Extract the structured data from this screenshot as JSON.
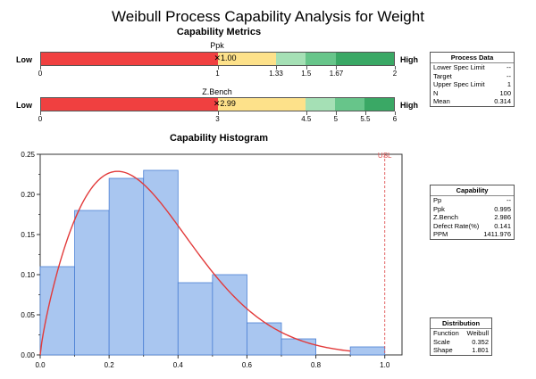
{
  "title": "Weibull Process Capability Analysis for Weight",
  "metrics_title": "Capability Metrics",
  "histogram_title": "Capability Histogram",
  "colors": {
    "red": "#f04040",
    "yellow": "#fde18a",
    "lightgreen": "#a5e0b5",
    "midgreen": "#67c58a",
    "darkgreen": "#3aa865",
    "bin_fill": "#a9c6f0",
    "bin_stroke": "#4a7fd4",
    "curve": "#e23a3a",
    "usl": "#e05555"
  },
  "ppk_bar": {
    "label": "Ppk",
    "low": "Low",
    "high": "High",
    "ticks": [
      "0",
      "1",
      "1.33",
      "1.5",
      "1.67",
      "2"
    ],
    "tick_values": [
      0,
      1,
      1.33,
      1.5,
      1.67,
      2
    ],
    "value": 1.0,
    "value_label": "1.00",
    "marker_symbol": "✕"
  },
  "zbench_bar": {
    "label": "Z.Bench",
    "low": "Low",
    "high": "High",
    "ticks": [
      "0",
      "3",
      "4.5",
      "5",
      "5.5",
      "6"
    ],
    "tick_values": [
      0,
      3,
      4.5,
      5,
      5.5,
      6
    ],
    "value": 2.99,
    "value_label": "2.99",
    "marker_symbol": "✕"
  },
  "process_data": {
    "title": "Process Data",
    "rows": [
      {
        "label": "Lower Spec Limit",
        "value": "--"
      },
      {
        "label": "Target",
        "value": "--"
      },
      {
        "label": "Upper Spec Limit",
        "value": "1"
      },
      {
        "label": "N",
        "value": "100"
      },
      {
        "label": "Mean",
        "value": "0.314"
      }
    ]
  },
  "capability": {
    "title": "Capability",
    "rows": [
      {
        "label": "Pp",
        "value": "--"
      },
      {
        "label": "Ppk",
        "value": "0.995"
      },
      {
        "label": "Z.Bench",
        "value": "2.986"
      },
      {
        "label": "Defect Rate(%)",
        "value": "0.141"
      },
      {
        "label": "PPM",
        "value": "1411.976"
      }
    ]
  },
  "distribution": {
    "title": "Distribution",
    "rows": [
      {
        "label": "Function",
        "value": "Weibull"
      },
      {
        "label": "Scale",
        "value": "0.352"
      },
      {
        "label": "Shape",
        "value": "1.801"
      }
    ]
  },
  "chart_data": {
    "type": "bar",
    "title": "Capability Histogram",
    "bins": [
      {
        "x0": 0.0,
        "x1": 0.1,
        "value": 0.11
      },
      {
        "x0": 0.1,
        "x1": 0.2,
        "value": 0.18
      },
      {
        "x0": 0.2,
        "x1": 0.3,
        "value": 0.22
      },
      {
        "x0": 0.3,
        "x1": 0.4,
        "value": 0.23
      },
      {
        "x0": 0.4,
        "x1": 0.5,
        "value": 0.09
      },
      {
        "x0": 0.5,
        "x1": 0.6,
        "value": 0.1
      },
      {
        "x0": 0.6,
        "x1": 0.7,
        "value": 0.04
      },
      {
        "x0": 0.7,
        "x1": 0.8,
        "value": 0.02
      },
      {
        "x0": 0.9,
        "x1": 1.0,
        "value": 0.01
      }
    ],
    "curve": {
      "distribution": "Weibull",
      "scale": 0.352,
      "shape": 1.801,
      "bin_width": 0.1,
      "x_max": 0.9
    },
    "xlim": [
      0,
      1.05
    ],
    "ylim": [
      0,
      0.25
    ],
    "xticks": [
      0,
      0.2,
      0.4,
      0.6,
      0.8,
      1.0
    ],
    "xtick_labels": [
      "0.0",
      "0.2",
      "0.4",
      "0.6",
      "0.8",
      "1.0"
    ],
    "yticks": [
      0,
      0.05,
      0.1,
      0.15,
      0.2,
      0.25
    ],
    "ytick_labels": [
      "0.00",
      "0.05",
      "0.10",
      "0.15",
      "0.20",
      "0.25"
    ],
    "usl": {
      "label": "USL",
      "value": 1.0
    }
  }
}
